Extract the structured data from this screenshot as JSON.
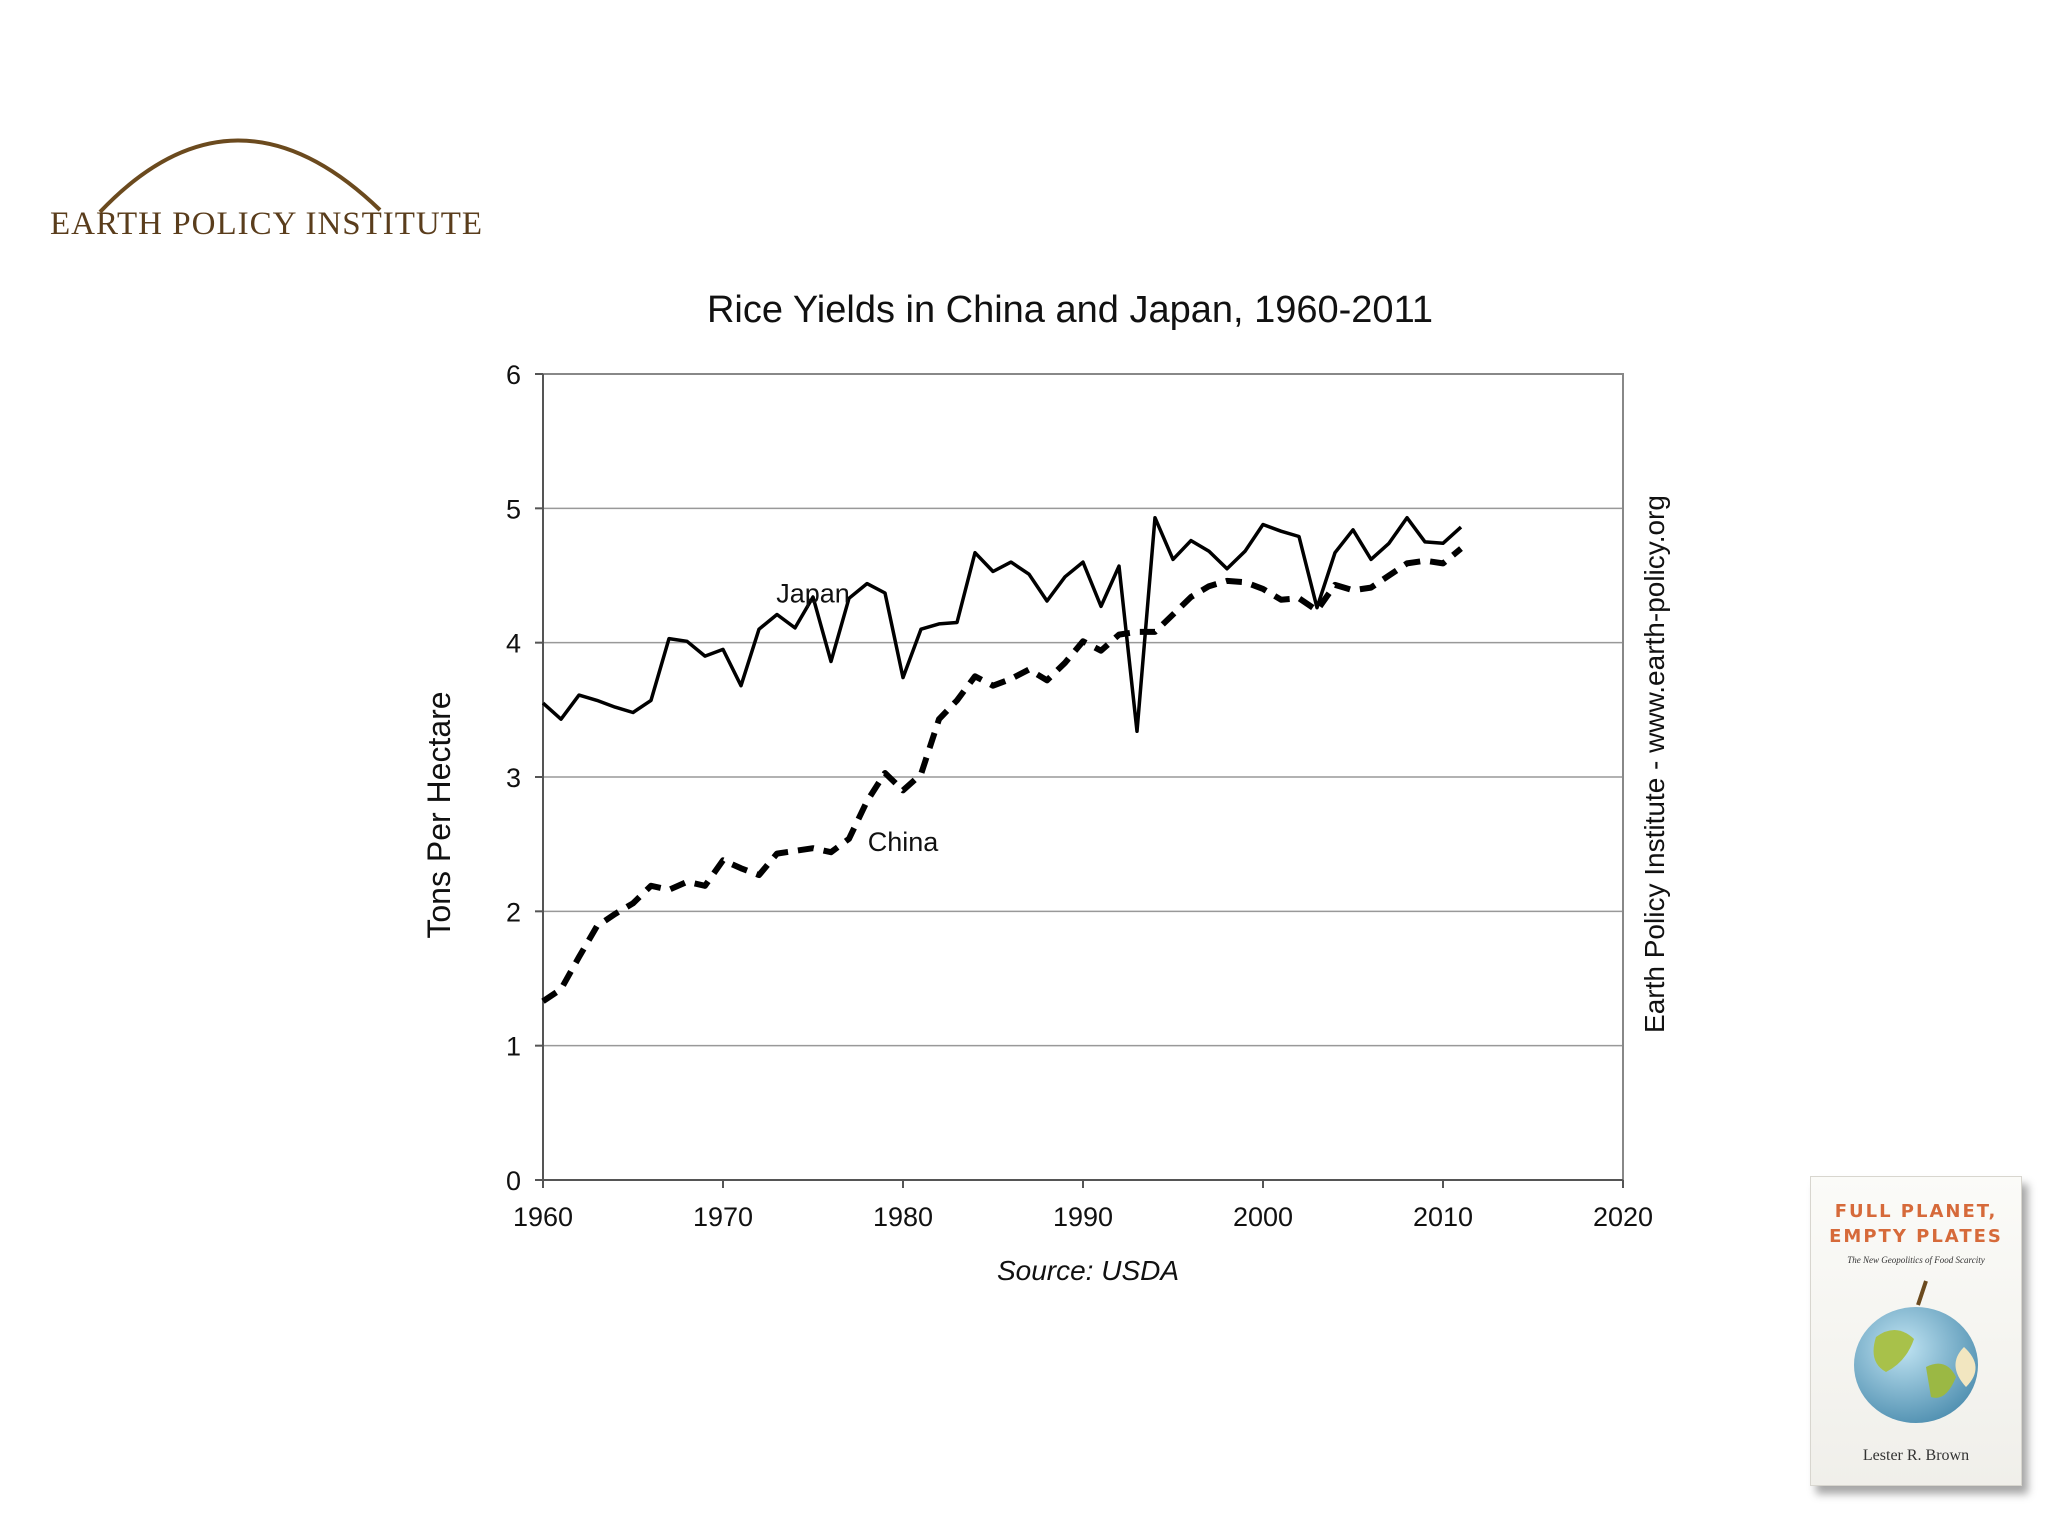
{
  "logo": {
    "text": "EARTH POLICY INSTITUTE",
    "arc_color": "#6b4a1e"
  },
  "chart_data": {
    "type": "line",
    "title": "Rice Yields in China and Japan, 1960-2011",
    "ylabel": "Tons Per Hectare",
    "xlabel": "",
    "right_label": "Earth Policy Institute - www.earth-policy.org",
    "source": "Source: USDA",
    "xlim": [
      1960,
      2020
    ],
    "ylim": [
      0,
      6
    ],
    "x_ticks": [
      1960,
      1970,
      1980,
      1990,
      2000,
      2010,
      2020
    ],
    "y_ticks": [
      0,
      1,
      2,
      3,
      4,
      5,
      6
    ],
    "grid": true,
    "x": [
      1960,
      1961,
      1962,
      1963,
      1964,
      1965,
      1966,
      1967,
      1968,
      1969,
      1970,
      1971,
      1972,
      1973,
      1974,
      1975,
      1976,
      1977,
      1978,
      1979,
      1980,
      1981,
      1982,
      1983,
      1984,
      1985,
      1986,
      1987,
      1988,
      1989,
      1990,
      1991,
      1992,
      1993,
      1994,
      1995,
      1996,
      1997,
      1998,
      1999,
      2000,
      2001,
      2002,
      2003,
      2004,
      2005,
      2006,
      2007,
      2008,
      2009,
      2010,
      2011
    ],
    "series": [
      {
        "name": "Japan",
        "style": "solid",
        "label_at": [
          1975,
          4.3
        ],
        "values": [
          3.55,
          3.43,
          3.61,
          3.57,
          3.52,
          3.48,
          3.57,
          4.03,
          4.01,
          3.9,
          3.95,
          3.68,
          4.1,
          4.21,
          4.11,
          4.34,
          3.86,
          4.33,
          4.44,
          4.37,
          3.74,
          4.1,
          4.14,
          4.15,
          4.67,
          4.53,
          4.6,
          4.51,
          4.31,
          4.49,
          4.6,
          4.27,
          4.57,
          3.34,
          4.93,
          4.62,
          4.76,
          4.68,
          4.55,
          4.68,
          4.88,
          4.83,
          4.79,
          4.26,
          4.67,
          4.84,
          4.62,
          4.74,
          4.93,
          4.75,
          4.74,
          4.86
        ]
      },
      {
        "name": "China",
        "style": "dashed",
        "label_at": [
          1980,
          2.45
        ],
        "values": [
          1.33,
          1.42,
          1.66,
          1.89,
          1.98,
          2.06,
          2.19,
          2.16,
          2.22,
          2.19,
          2.38,
          2.32,
          2.27,
          2.43,
          2.45,
          2.47,
          2.44,
          2.54,
          2.82,
          3.03,
          2.9,
          3.02,
          3.43,
          3.57,
          3.75,
          3.68,
          3.73,
          3.8,
          3.72,
          3.85,
          4.01,
          3.94,
          4.06,
          4.08,
          4.08,
          4.21,
          4.34,
          4.42,
          4.46,
          4.45,
          4.4,
          4.32,
          4.33,
          4.24,
          4.43,
          4.39,
          4.41,
          4.5,
          4.59,
          4.61,
          4.59,
          4.7
        ]
      }
    ]
  },
  "book": {
    "title_line1": "FULL PLANET,",
    "title_line2": "EMPTY PLATES",
    "subtitle": "The New Geopolitics of Food Scarcity",
    "author": "Lester R. Brown"
  }
}
